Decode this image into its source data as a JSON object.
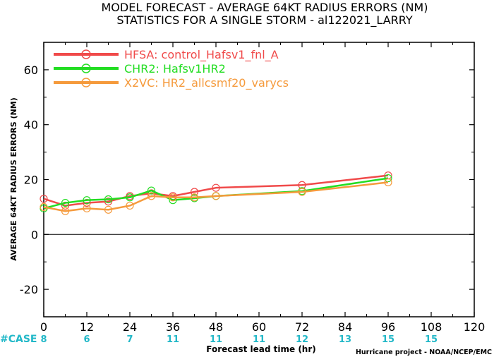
{
  "chart_data": {
    "type": "line",
    "title": "MODEL FORECAST - AVERAGE 64KT RADIUS ERRORS (NM)",
    "subtitle": "STATISTICS FOR A SINGLE STORM - al122021_LARRY",
    "xlabel": "Forecast lead time (hr)",
    "ylabel": "AVERAGE 64KT RADIUS ERRORS (NM)",
    "xlim": [
      0,
      120
    ],
    "ylim": [
      -30,
      70
    ],
    "xticks": [
      0,
      12,
      24,
      36,
      48,
      60,
      72,
      84,
      96,
      108,
      120
    ],
    "yticks": [
      -20,
      0,
      20,
      40,
      60
    ],
    "zero_line": true,
    "grid": false,
    "legend_position": "top-left",
    "case_label": "#CASE",
    "cases": [
      {
        "x": 0,
        "n": "8"
      },
      {
        "x": 12,
        "n": "6"
      },
      {
        "x": 24,
        "n": "7"
      },
      {
        "x": 36,
        "n": "11"
      },
      {
        "x": 48,
        "n": "11"
      },
      {
        "x": 60,
        "n": "11"
      },
      {
        "x": 72,
        "n": "12"
      },
      {
        "x": 84,
        "n": "13"
      },
      {
        "x": 96,
        "n": "15"
      },
      {
        "x": 108,
        "n": "15"
      }
    ],
    "series": [
      {
        "name": "HFSA: control_Hafsv1_fnl_A",
        "color": "#f04a4a",
        "points": [
          [
            0,
            13
          ],
          [
            6,
            10.5
          ],
          [
            12,
            11.5
          ],
          [
            18,
            12
          ],
          [
            24,
            14
          ],
          [
            30,
            15
          ],
          [
            36,
            14
          ],
          [
            42,
            15.5
          ],
          [
            48,
            17
          ],
          [
            72,
            18
          ],
          [
            96,
            21.5
          ]
        ]
      },
      {
        "name": "CHR2: Hafsv1HR2",
        "color": "#22dd22",
        "points": [
          [
            0,
            9.5
          ],
          [
            6,
            11.5
          ],
          [
            12,
            12.5
          ],
          [
            18,
            12.8
          ],
          [
            24,
            13.5
          ],
          [
            30,
            16
          ],
          [
            36,
            12.5
          ],
          [
            42,
            13.2
          ],
          [
            48,
            14
          ],
          [
            72,
            15.8
          ],
          [
            96,
            20.5
          ]
        ]
      },
      {
        "name": "X2VC: HR2_allcsmf20_varycs",
        "color": "#f59a3c",
        "points": [
          [
            0,
            10
          ],
          [
            6,
            8.5
          ],
          [
            12,
            9.5
          ],
          [
            18,
            9
          ],
          [
            24,
            10.5
          ],
          [
            30,
            14
          ],
          [
            36,
            13.5
          ],
          [
            42,
            13.5
          ],
          [
            48,
            14
          ],
          [
            72,
            15.5
          ],
          [
            96,
            19
          ]
        ]
      }
    ],
    "credit": "Hurricane project - NOAA/NCEP/EMC"
  },
  "colors": {
    "axis": "#000000",
    "case_text": "#22b8c8"
  }
}
